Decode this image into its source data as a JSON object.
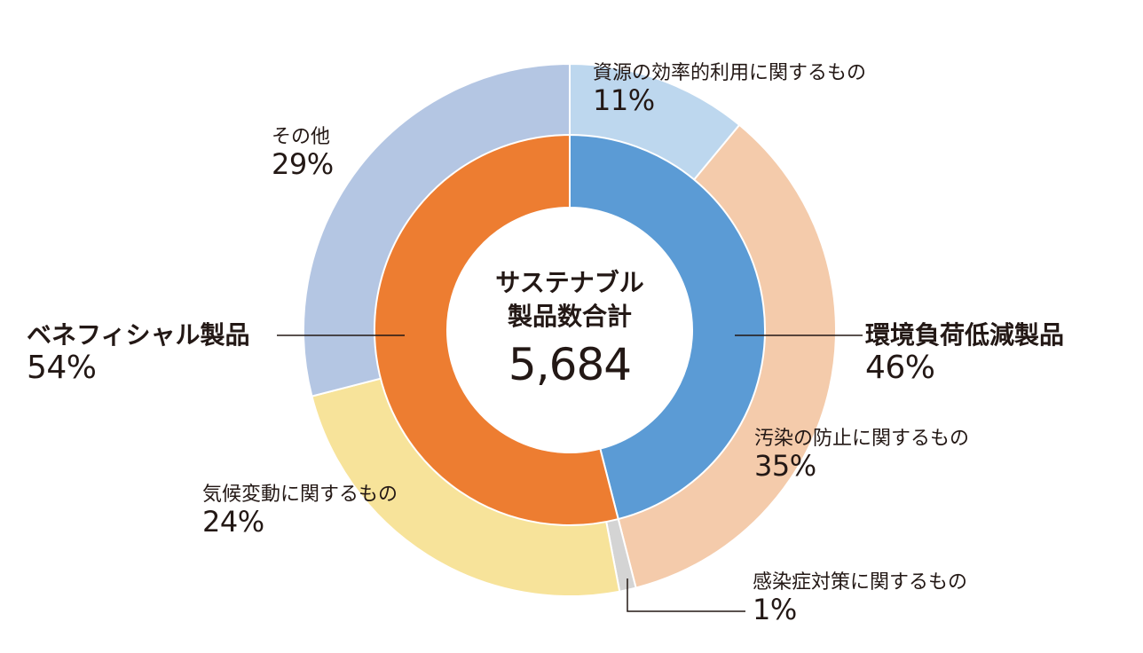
{
  "chart_data": {
    "type": "pie",
    "variant": "nested-donut",
    "center": {
      "title_line1": "サステナブル",
      "title_line2": "製品数合計",
      "total": "5,684"
    },
    "inner": [
      {
        "name": "環境負荷低減製品",
        "value": 46,
        "label": "46%",
        "color": "#5b9bd5"
      },
      {
        "name": "ベネフィシャル製品",
        "value": 54,
        "label": "54%",
        "color": "#ed7d31"
      }
    ],
    "outer": [
      {
        "name": "資源の効率的利用に関するもの",
        "value": 11,
        "label": "11%",
        "color": "#bdd7ee"
      },
      {
        "name": "汚染の防止に関するもの",
        "value": 35,
        "label": "35%",
        "color": "#f4cbab"
      },
      {
        "name": "感染症対策に関するもの",
        "value": 1,
        "label": "1%",
        "color": "#d4d4d4"
      },
      {
        "name": "気候変動に関するもの",
        "value": 24,
        "label": "24%",
        "color": "#f7e39a"
      },
      {
        "name": "その他",
        "value": 29,
        "label": "29%",
        "color": "#b4c6e3"
      }
    ]
  }
}
